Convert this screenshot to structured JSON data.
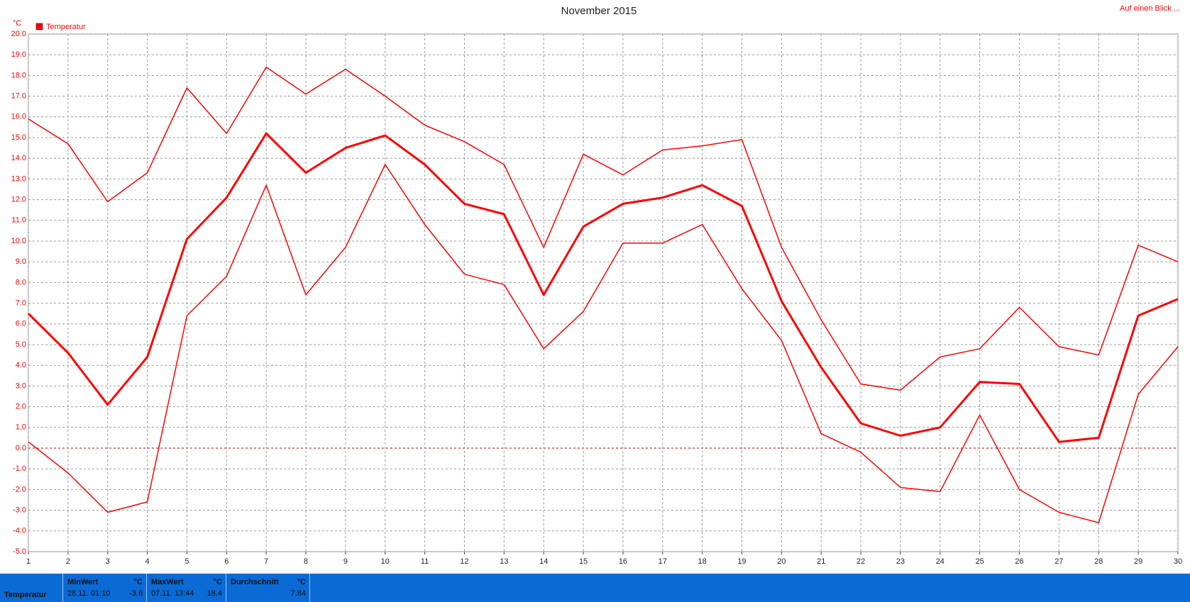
{
  "chart_data": {
    "type": "line",
    "title": "November 2015",
    "y_unit": "°C",
    "legend_label": "Temperatur",
    "legend_color": "#ff0000",
    "corner_link": "Auf einen Blick ...",
    "x": [
      1,
      2,
      3,
      4,
      5,
      6,
      7,
      8,
      9,
      10,
      11,
      12,
      13,
      14,
      15,
      16,
      17,
      18,
      19,
      20,
      21,
      22,
      23,
      24,
      25,
      26,
      27,
      28,
      29,
      30
    ],
    "xlim": [
      1,
      30
    ],
    "xticks": [
      1,
      2,
      3,
      4,
      5,
      6,
      7,
      8,
      9,
      10,
      11,
      12,
      13,
      14,
      15,
      16,
      17,
      18,
      19,
      20,
      21,
      22,
      23,
      24,
      25,
      26,
      27,
      28,
      29,
      30
    ],
    "ylim": [
      -5,
      20
    ],
    "yticks": [
      {
        "value": -5,
        "label": "-5.0"
      },
      {
        "value": -4,
        "label": "-4.0"
      },
      {
        "value": -3,
        "label": "-3.0"
      },
      {
        "value": -2,
        "label": "-2.0"
      },
      {
        "value": -1,
        "label": "-1.0"
      },
      {
        "value": 0,
        "label": "0.0"
      },
      {
        "value": 1,
        "label": "1.0"
      },
      {
        "value": 2,
        "label": "2.0"
      },
      {
        "value": 3,
        "label": "3.0"
      },
      {
        "value": 4,
        "label": "4.0"
      },
      {
        "value": 5,
        "label": "5.0"
      },
      {
        "value": 6,
        "label": "6.0"
      },
      {
        "value": 7,
        "label": "7.0"
      },
      {
        "value": 8,
        "label": "8.0"
      },
      {
        "value": 9,
        "label": "9.0"
      },
      {
        "value": 10,
        "label": "10.0"
      },
      {
        "value": 11,
        "label": "11.0"
      },
      {
        "value": 12,
        "label": "12.0"
      },
      {
        "value": 13,
        "label": "13.0"
      },
      {
        "value": 14,
        "label": "14.0"
      },
      {
        "value": 15,
        "label": "15.0"
      },
      {
        "value": 16,
        "label": "16.0"
      },
      {
        "value": 17,
        "label": "17.0"
      },
      {
        "value": 18,
        "label": "18.0"
      },
      {
        "value": 19,
        "label": "19.0"
      },
      {
        "value": 20,
        "label": "20.0"
      }
    ],
    "grid": true,
    "series": [
      {
        "color": "#ff0000",
        "width": 1.5,
        "values": [
          15.9,
          14.7,
          11.9,
          13.3,
          17.4,
          15.2,
          18.4,
          17.1,
          18.3,
          17.0,
          15.6,
          14.8,
          13.7,
          9.7,
          14.2,
          13.2,
          14.4,
          14.6,
          14.9,
          9.7,
          6.2,
          3.1,
          2.8,
          4.4,
          4.8,
          6.8,
          4.9,
          4.5,
          9.8,
          9.0
        ]
      },
      {
        "color": "#ff0000",
        "width": 3,
        "values": [
          6.5,
          4.6,
          2.1,
          4.4,
          10.1,
          12.1,
          15.2,
          13.3,
          14.5,
          15.1,
          13.7,
          11.8,
          11.3,
          7.4,
          10.7,
          11.8,
          12.1,
          12.7,
          11.7,
          7.1,
          3.9,
          1.2,
          0.6,
          1.0,
          3.2,
          3.1,
          0.3,
          0.5,
          6.4,
          7.2
        ]
      },
      {
        "color": "#ff0000",
        "width": 1.5,
        "values": [
          0.3,
          -1.2,
          -3.1,
          -2.6,
          6.4,
          8.3,
          12.7,
          7.4,
          9.7,
          13.7,
          10.8,
          8.4,
          7.9,
          4.8,
          6.6,
          9.9,
          9.9,
          10.8,
          7.7,
          5.2,
          0.7,
          -0.2,
          -1.9,
          -2.1,
          1.6,
          -2.0,
          -3.1,
          -3.6,
          2.6,
          4.9
        ]
      }
    ]
  },
  "info_bar": {
    "label": "Temperatur",
    "cells": [
      {
        "title": "MinWert",
        "unit": "°C",
        "time": "28.11. 01:10",
        "value": -3.6
      },
      {
        "title": "MaxWert",
        "unit": "°C",
        "time": "07.11. 13:44",
        "value": 18.4
      },
      {
        "title": "Durchschnitt",
        "unit": "°C",
        "value": 7.84
      }
    ]
  }
}
